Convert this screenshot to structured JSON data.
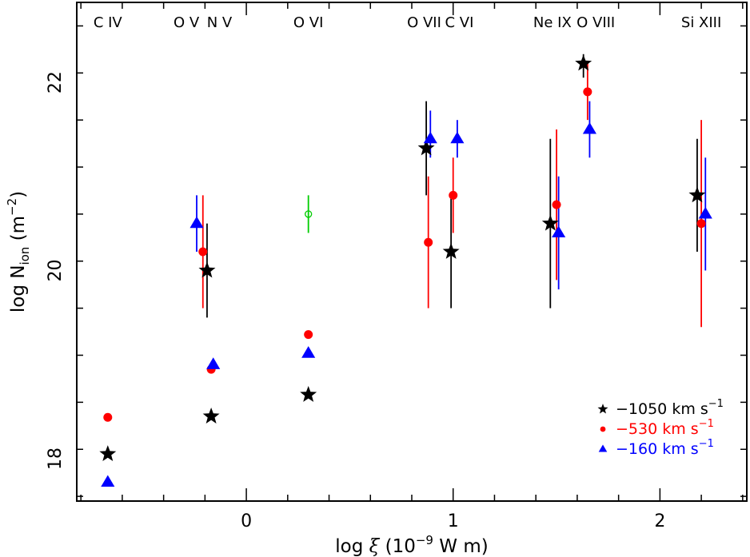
{
  "chart_data": {
    "type": "scatter",
    "xlabel": {
      "prefix": "log ",
      "symbol": "ξ",
      "unit_open": " (10",
      "unit_exp": "−9",
      "unit_close": " W m)"
    },
    "ylabel": {
      "prefix": "log N",
      "sub": "ion",
      "unit_open": " (m",
      "unit_exp": "−2",
      "unit_close": ")"
    },
    "xlim": [
      -0.82,
      2.42
    ],
    "ylim": [
      17.55,
      22.85
    ],
    "xticks": [
      0,
      1,
      2
    ],
    "xtick_labels": [
      "0",
      "1",
      "2"
    ],
    "yticks": [
      18,
      20,
      22
    ],
    "ytick_labels": [
      "18",
      "20",
      "22"
    ],
    "ion_labels": [
      {
        "text": "C IV",
        "x": -0.67
      },
      {
        "text": "O V",
        "x": -0.29
      },
      {
        "text": "N V",
        "x": -0.13
      },
      {
        "text": "O VI",
        "x": 0.3
      },
      {
        "text": "O VII",
        "x": 0.86
      },
      {
        "text": "C VI",
        "x": 1.03
      },
      {
        "text": "Ne IX",
        "x": 1.48
      },
      {
        "text": "O VIII",
        "x": 1.69
      },
      {
        "text": "Si XIII",
        "x": 2.2
      }
    ],
    "series": [
      {
        "name": "−1050 km s",
        "name_sup": "−1",
        "color": "#000000",
        "marker": "star",
        "points": [
          {
            "x": -0.67,
            "y": 18.05
          },
          {
            "x": -0.19,
            "y": 20.0,
            "ylo": 19.5,
            "yhi": 20.5
          },
          {
            "x": -0.17,
            "y": 18.45
          },
          {
            "x": 0.3,
            "y": 18.68
          },
          {
            "x": 0.87,
            "y": 21.3,
            "ylo": 20.8,
            "yhi": 21.8
          },
          {
            "x": 0.99,
            "y": 20.2,
            "ylo": 19.6,
            "yhi": 20.8
          },
          {
            "x": 1.47,
            "y": 20.5,
            "ylo": 19.6,
            "yhi": 21.4
          },
          {
            "x": 1.63,
            "y": 22.2,
            "ylo": 22.05,
            "yhi": 22.3
          },
          {
            "x": 2.18,
            "y": 20.8,
            "ylo": 20.2,
            "yhi": 21.4
          }
        ]
      },
      {
        "name": "−530 km s",
        "name_sup": "−1",
        "color": "#ff0000",
        "marker": "circle",
        "points": [
          {
            "x": -0.67,
            "y": 18.44
          },
          {
            "x": -0.21,
            "y": 20.2,
            "ylo": 19.6,
            "yhi": 20.8
          },
          {
            "x": -0.17,
            "y": 18.95
          },
          {
            "x": 0.3,
            "y": 19.32
          },
          {
            "x": 0.88,
            "y": 20.3,
            "ylo": 19.6,
            "yhi": 21.0
          },
          {
            "x": 1.0,
            "y": 20.8,
            "ylo": 20.4,
            "yhi": 21.2
          },
          {
            "x": 1.5,
            "y": 20.7,
            "ylo": 19.9,
            "yhi": 21.5
          },
          {
            "x": 1.65,
            "y": 21.9,
            "ylo": 21.6,
            "yhi": 22.2
          },
          {
            "x": 2.2,
            "y": 20.5,
            "ylo": 19.4,
            "yhi": 21.6
          }
        ]
      },
      {
        "name": "−160 km s",
        "name_sup": "−1",
        "color": "#0000ff",
        "marker": "triangle",
        "points": [
          {
            "x": -0.67,
            "y": 17.75
          },
          {
            "x": -0.24,
            "y": 20.5,
            "ylo": 20.2,
            "yhi": 20.8
          },
          {
            "x": -0.16,
            "y": 19.0
          },
          {
            "x": 0.3,
            "y": 19.12
          },
          {
            "x": 0.89,
            "y": 21.4,
            "ylo": 21.2,
            "yhi": 21.7
          },
          {
            "x": 1.02,
            "y": 21.4,
            "ylo": 21.2,
            "yhi": 21.6
          },
          {
            "x": 1.51,
            "y": 20.4,
            "ylo": 19.8,
            "yhi": 21.0
          },
          {
            "x": 1.66,
            "y": 21.5,
            "ylo": 21.2,
            "yhi": 21.8
          },
          {
            "x": 2.22,
            "y": 20.6,
            "ylo": 20.0,
            "yhi": 21.2
          }
        ]
      },
      {
        "color": "#00cc00",
        "marker": "open-circle",
        "points": [
          {
            "x": 0.3,
            "y": 20.6,
            "ylo": 20.4,
            "yhi": 20.8
          }
        ]
      }
    ],
    "legend_position": "bottom-right",
    "grid": false
  }
}
